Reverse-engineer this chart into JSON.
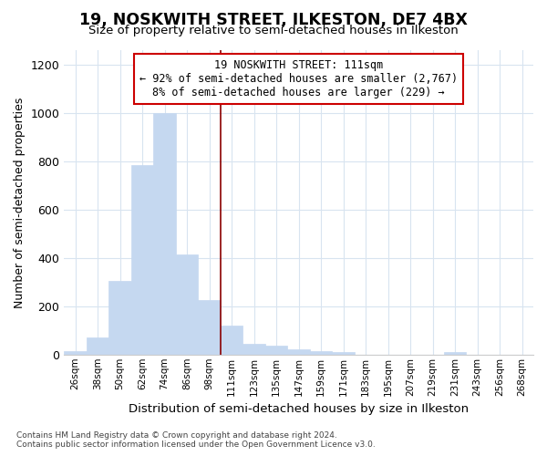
{
  "title": "19, NOSKWITH STREET, ILKESTON, DE7 4BX",
  "subtitle": "Size of property relative to semi-detached houses in Ilkeston",
  "xlabel": "Distribution of semi-detached houses by size in Ilkeston",
  "ylabel": "Number of semi-detached properties",
  "categories": [
    "26sqm",
    "38sqm",
    "50sqm",
    "62sqm",
    "74sqm",
    "86sqm",
    "98sqm",
    "111sqm",
    "123sqm",
    "135sqm",
    "147sqm",
    "159sqm",
    "171sqm",
    "183sqm",
    "195sqm",
    "207sqm",
    "219sqm",
    "231sqm",
    "243sqm",
    "256sqm",
    "268sqm"
  ],
  "values": [
    15,
    70,
    305,
    785,
    1000,
    415,
    225,
    120,
    45,
    35,
    20,
    15,
    12,
    0,
    0,
    0,
    0,
    10,
    0,
    0,
    0
  ],
  "bar_color": "#c5d8f0",
  "bar_edge_color": "#c5d8f0",
  "highlight_index": 7,
  "highlight_color": "#8b0000",
  "annotation_title": "19 NOSKWITH STREET: 111sqm",
  "annotation_line1": "← 92% of semi-detached houses are smaller (2,767)",
  "annotation_line2": "8% of semi-detached houses are larger (229) →",
  "annotation_box_color": "#ffffff",
  "annotation_box_edge": "#cc0000",
  "ylim": [
    0,
    1260
  ],
  "yticks": [
    0,
    200,
    400,
    600,
    800,
    1000,
    1200
  ],
  "footer1": "Contains HM Land Registry data © Crown copyright and database right 2024.",
  "footer2": "Contains public sector information licensed under the Open Government Licence v3.0.",
  "bg_color": "#ffffff",
  "grid_color": "#d8e4f0"
}
